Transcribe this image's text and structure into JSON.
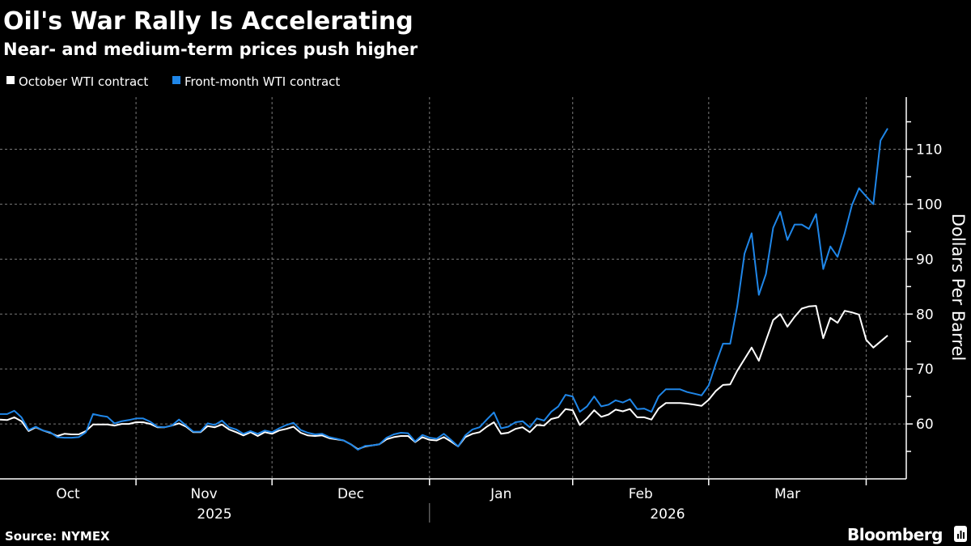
{
  "title": "Oil's War Rally Is Accelerating",
  "subtitle": "Near- and medium-term prices push higher",
  "source": "Source: NYMEX",
  "brand": "Bloomberg",
  "colors": {
    "background": "#000000",
    "october_wti": "#ffffff",
    "front_month_wti": "#1f86e8"
  },
  "chart_data": {
    "type": "line",
    "title": "Oil's War Rally Is Accelerating",
    "subtitle": "Near- and medium-term prices push higher",
    "ylabel": "Dollars Per Barrel",
    "xlabel": "",
    "ylim": [
      50,
      119.5
    ],
    "yticks": [
      60,
      70,
      80,
      90,
      100,
      110
    ],
    "y_axis_position": "right",
    "grid": true,
    "legend_position": "top-left",
    "month_labels": [
      "Oct",
      "Nov",
      "Dec",
      "Jan",
      "Feb",
      "Mar"
    ],
    "year_labels": [
      "2025",
      "2026"
    ],
    "x": [
      "2025-10-07",
      "2025-10-08",
      "2025-10-09",
      "2025-10-10",
      "2025-10-13",
      "2025-10-14",
      "2025-10-15",
      "2025-10-16",
      "2025-10-17",
      "2025-10-20",
      "2025-10-21",
      "2025-10-22",
      "2025-10-23",
      "2025-10-24",
      "2025-10-27",
      "2025-10-28",
      "2025-10-29",
      "2025-10-30",
      "2025-10-31",
      "2025-11-03",
      "2025-11-04",
      "2025-11-05",
      "2025-11-06",
      "2025-11-07",
      "2025-11-10",
      "2025-11-11",
      "2025-11-12",
      "2025-11-13",
      "2025-11-14",
      "2025-11-17",
      "2025-11-18",
      "2025-11-19",
      "2025-11-20",
      "2025-11-21",
      "2025-11-24",
      "2025-11-25",
      "2025-11-26",
      "2025-11-28",
      "2025-12-01",
      "2025-12-02",
      "2025-12-03",
      "2025-12-04",
      "2025-12-05",
      "2025-12-08",
      "2025-12-09",
      "2025-12-10",
      "2025-12-11",
      "2025-12-12",
      "2025-12-15",
      "2025-12-16",
      "2025-12-17",
      "2025-12-18",
      "2025-12-19",
      "2025-12-22",
      "2025-12-23",
      "2025-12-24",
      "2025-12-26",
      "2025-12-29",
      "2025-12-30",
      "2025-12-31",
      "2026-01-02",
      "2026-01-05",
      "2026-01-06",
      "2026-01-07",
      "2026-01-08",
      "2026-01-09",
      "2026-01-12",
      "2026-01-13",
      "2026-01-14",
      "2026-01-15",
      "2026-01-16",
      "2026-01-20",
      "2026-01-21",
      "2026-01-22",
      "2026-01-23",
      "2026-01-26",
      "2026-01-27",
      "2026-01-28",
      "2026-01-29",
      "2026-01-30",
      "2026-02-02",
      "2026-02-03",
      "2026-02-04",
      "2026-02-05",
      "2026-02-06",
      "2026-02-09",
      "2026-02-10",
      "2026-02-11",
      "2026-02-12",
      "2026-02-13",
      "2026-02-17",
      "2026-02-18",
      "2026-02-19",
      "2026-02-20",
      "2026-02-23",
      "2026-02-24",
      "2026-02-25",
      "2026-02-26",
      "2026-02-27",
      "2026-03-02",
      "2026-03-03",
      "2026-03-04",
      "2026-03-05",
      "2026-03-06",
      "2026-03-09",
      "2026-03-10",
      "2026-03-11",
      "2026-03-12",
      "2026-03-13",
      "2026-03-16",
      "2026-03-17",
      "2026-03-18",
      "2026-03-19",
      "2026-03-20",
      "2026-03-23",
      "2026-03-24",
      "2026-03-25",
      "2026-03-26",
      "2026-03-27",
      "2026-03-30",
      "2026-03-31",
      "2026-04-01",
      "2026-04-02",
      "2026-04-06",
      "2026-04-07"
    ],
    "series": [
      {
        "name": "October WTI contract",
        "color": "#ffffff",
        "values": [
          60.8,
          60.7,
          61.2,
          60.5,
          58.7,
          59.4,
          58.8,
          58.4,
          57.8,
          58.2,
          58.1,
          58.1,
          58.7,
          59.9,
          59.9,
          59.9,
          59.7,
          60.0,
          60.0,
          60.3,
          60.3,
          60.0,
          59.4,
          59.4,
          59.7,
          60.1,
          59.5,
          58.5,
          58.5,
          59.6,
          59.4,
          59.9,
          59.0,
          58.5,
          57.9,
          58.5,
          57.8,
          58.5,
          58.2,
          58.8,
          59.1,
          59.5,
          58.4,
          57.9,
          57.8,
          57.9,
          57.4,
          57.2,
          57.0,
          56.3,
          55.4,
          55.9,
          56.1,
          56.3,
          57.2,
          57.6,
          57.8,
          57.8,
          56.7,
          57.6,
          57.1,
          57.0,
          57.6,
          56.8,
          55.9,
          57.6,
          58.2,
          58.5,
          59.5,
          60.3,
          58.2,
          58.4,
          59.1,
          59.4,
          58.5,
          59.8,
          59.7,
          60.9,
          61.2,
          62.7,
          62.5,
          59.8,
          61.0,
          62.5,
          61.3,
          61.7,
          62.6,
          62.3,
          62.7,
          61.2,
          61.2,
          60.8,
          62.8,
          63.8,
          63.8,
          63.8,
          63.7,
          63.5,
          63.3,
          64.4,
          66.0,
          67.1,
          67.2,
          69.7,
          71.8,
          73.9,
          71.5,
          75.2,
          78.9,
          80.0,
          77.7,
          79.5,
          81.0,
          81.4,
          81.5,
          75.6,
          79.3,
          78.4,
          80.6,
          80.3,
          79.9,
          75.3,
          73.9,
          75.0,
          76.1
        ]
      },
      {
        "name": "Front-month WTI contract",
        "color": "#1f86e8",
        "values": [
          61.8,
          61.8,
          62.4,
          61.2,
          58.9,
          59.5,
          58.8,
          58.5,
          57.6,
          57.5,
          57.5,
          57.6,
          58.5,
          61.8,
          61.5,
          61.3,
          60.1,
          60.5,
          60.7,
          61.0,
          61.0,
          60.4,
          59.5,
          59.4,
          59.7,
          60.8,
          59.7,
          58.6,
          58.6,
          60.1,
          59.8,
          60.6,
          59.4,
          59.0,
          58.2,
          58.7,
          58.2,
          58.8,
          58.5,
          59.2,
          59.8,
          60.2,
          58.9,
          58.4,
          58.1,
          58.2,
          57.6,
          57.3,
          57.0,
          56.3,
          55.3,
          56.0,
          56.1,
          56.3,
          57.5,
          58.1,
          58.4,
          58.3,
          56.8,
          58.0,
          57.5,
          57.3,
          58.2,
          57.1,
          55.9,
          57.9,
          59.0,
          59.4,
          60.8,
          62.1,
          59.2,
          59.5,
          60.3,
          60.5,
          59.4,
          61.0,
          60.6,
          62.2,
          63.2,
          65.3,
          65.0,
          62.2,
          63.2,
          65.0,
          63.2,
          63.5,
          64.3,
          63.9,
          64.5,
          62.7,
          62.8,
          62.2,
          65.0,
          66.3,
          66.3,
          66.3,
          65.8,
          65.5,
          65.2,
          67.0,
          71.0,
          74.6,
          74.6,
          81.5,
          91.0,
          94.7,
          83.5,
          87.3,
          95.7,
          98.6,
          93.5,
          96.3,
          96.3,
          95.5,
          98.2,
          88.2,
          92.3,
          90.4,
          94.7,
          99.8,
          102.9,
          101.4,
          100.0,
          111.6,
          113.8
        ]
      }
    ]
  }
}
